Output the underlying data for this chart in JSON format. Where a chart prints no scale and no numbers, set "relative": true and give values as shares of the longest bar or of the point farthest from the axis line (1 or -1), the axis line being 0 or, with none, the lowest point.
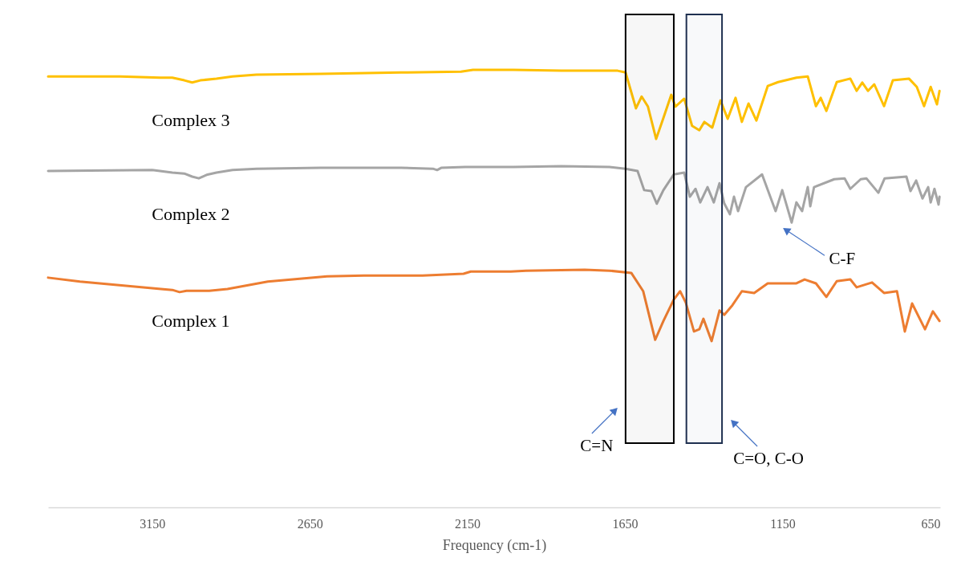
{
  "chart_data": {
    "type": "line",
    "relative": true,
    "xlabel": "Frequency (cm-1)",
    "xlim": [
      3480,
      650
    ],
    "xticks": [
      3150,
      2650,
      2150,
      1650,
      1150,
      650
    ],
    "series": [
      {
        "name": "Complex 3",
        "color": "#ffc000",
        "x": [
          3480,
          3252,
          3125,
          3086,
          3048,
          3023,
          2997,
          2946,
          2895,
          2819,
          2615,
          2360,
          2170,
          2132,
          2004,
          1852,
          1673,
          1648,
          1615,
          1597,
          1577,
          1551,
          1528,
          1503,
          1490,
          1462,
          1437,
          1414,
          1398,
          1373,
          1347,
          1324,
          1299,
          1279,
          1258,
          1233,
          1197,
          1164,
          1106,
          1070,
          1044,
          1029,
          1011,
          978,
          935,
          915,
          897,
          879,
          859,
          828,
          800,
          749,
          724,
          701,
          680,
          660,
          652
        ],
        "values": [
          0.985,
          0.985,
          0.982,
          0.982,
          0.976,
          0.971,
          0.976,
          0.98,
          0.985,
          0.989,
          0.991,
          0.994,
          0.996,
          1.0,
          1.0,
          0.998,
          0.998,
          0.994,
          0.912,
          0.939,
          0.916,
          0.842,
          0.89,
          0.943,
          0.916,
          0.934,
          0.872,
          0.862,
          0.881,
          0.868,
          0.93,
          0.888,
          0.936,
          0.881,
          0.923,
          0.884,
          0.963,
          0.972,
          0.982,
          0.985,
          0.917,
          0.936,
          0.906,
          0.972,
          0.98,
          0.952,
          0.971,
          0.952,
          0.967,
          0.917,
          0.976,
          0.98,
          0.961,
          0.917,
          0.961,
          0.921,
          0.952
        ]
      },
      {
        "name": "Complex 2",
        "color": "#a5a5a5",
        "x": [
          3480,
          3150,
          3125,
          3086,
          3048,
          3023,
          3002,
          2977,
          2946,
          2895,
          2819,
          2615,
          2360,
          2259,
          2246,
          2233,
          2157,
          2004,
          1852,
          1699,
          1648,
          1610,
          1589,
          1566,
          1549,
          1528,
          1495,
          1462,
          1444,
          1426,
          1411,
          1388,
          1368,
          1350,
          1335,
          1317,
          1304,
          1291,
          1266,
          1215,
          1172,
          1151,
          1121,
          1106,
          1088,
          1070,
          1062,
          1050,
          986,
          953,
          935,
          902,
          884,
          846,
          826,
          757,
          744,
          726,
          706,
          688,
          680,
          668,
          655,
          652
        ],
        "values": [
          0.769,
          0.771,
          0.769,
          0.765,
          0.763,
          0.756,
          0.752,
          0.76,
          0.765,
          0.771,
          0.774,
          0.776,
          0.776,
          0.774,
          0.771,
          0.776,
          0.778,
          0.778,
          0.78,
          0.778,
          0.774,
          0.769,
          0.725,
          0.723,
          0.694,
          0.725,
          0.761,
          0.765,
          0.71,
          0.728,
          0.697,
          0.732,
          0.697,
          0.741,
          0.695,
          0.67,
          0.71,
          0.677,
          0.732,
          0.761,
          0.677,
          0.725,
          0.651,
          0.697,
          0.677,
          0.732,
          0.688,
          0.732,
          0.75,
          0.752,
          0.728,
          0.75,
          0.752,
          0.719,
          0.752,
          0.756,
          0.723,
          0.747,
          0.706,
          0.732,
          0.697,
          0.728,
          0.692,
          0.71
        ]
      },
      {
        "name": "Complex 1",
        "color": "#ed7d31",
        "x": [
          3480,
          3379,
          3122,
          3086,
          3063,
          3041,
          2969,
          2911,
          2783,
          2595,
          2478,
          2292,
          2162,
          2139,
          2012,
          1964,
          1778,
          1699,
          1630,
          1592,
          1554,
          1528,
          1495,
          1475,
          1457,
          1431,
          1414,
          1401,
          1375,
          1350,
          1335,
          1309,
          1279,
          1240,
          1197,
          1156,
          1106,
          1080,
          1044,
          1011,
          978,
          935,
          915,
          866,
          828,
          787,
          762,
          739,
          698,
          673,
          652
        ],
        "values": [
          0.525,
          0.516,
          0.499,
          0.497,
          0.492,
          0.495,
          0.495,
          0.499,
          0.516,
          0.528,
          0.53,
          0.53,
          0.534,
          0.539,
          0.539,
          0.541,
          0.543,
          0.541,
          0.536,
          0.494,
          0.383,
          0.426,
          0.475,
          0.494,
          0.468,
          0.402,
          0.407,
          0.431,
          0.38,
          0.45,
          0.44,
          0.462,
          0.494,
          0.49,
          0.512,
          0.512,
          0.512,
          0.521,
          0.512,
          0.481,
          0.517,
          0.521,
          0.503,
          0.514,
          0.49,
          0.494,
          0.402,
          0.466,
          0.407,
          0.448,
          0.426
        ]
      }
    ],
    "bands": [
      {
        "axis": "x",
        "from": 1648,
        "to": 1495,
        "label": "C=N",
        "color": "#000000"
      },
      {
        "axis": "x",
        "from": 1455,
        "to": 1342,
        "label": "C=O, C-O",
        "color": "#1f3050"
      }
    ],
    "annotations": [
      {
        "text": "C-F",
        "x": 1121,
        "y": 0.651
      }
    ]
  }
}
